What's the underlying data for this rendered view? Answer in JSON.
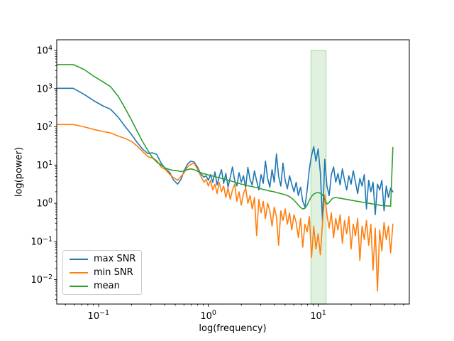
{
  "figure": {
    "xlabel": "log(frequency)",
    "ylabel": "log(power)",
    "background_color": "#ffffff",
    "spine_color": "#000000"
  },
  "chart_data": {
    "type": "line",
    "title": "",
    "xlabel": "log(frequency)",
    "ylabel": "log(power)",
    "x_scale": "log",
    "y_scale": "log",
    "xlim_log10": [
      -1.38,
      1.83
    ],
    "ylim_log10": [
      -2.64,
      4.28
    ],
    "x_major_ticks": [
      0.1,
      1,
      10
    ],
    "y_major_ticks": [
      10000,
      1000,
      100,
      10,
      1,
      0.1,
      0.01
    ],
    "grid": "off",
    "legend_position": "lower left",
    "highlight_band": {
      "x_start": 8.6,
      "x_end": 11.8,
      "y_top": 10000,
      "color": "#2ca02c",
      "fill_alpha": 0.15,
      "edge_alpha": 0.28
    },
    "log10_frequency": [
      -1.38,
      -1.31,
      -1.23,
      -1.13,
      -1.04,
      -0.96,
      -0.89,
      -0.82,
      -0.76,
      -0.7,
      -0.65,
      -0.6,
      -0.55,
      -0.51,
      -0.47,
      -0.43,
      -0.39,
      -0.35,
      -0.32,
      -0.28,
      -0.25,
      -0.22,
      -0.19,
      -0.16,
      -0.13,
      -0.1,
      -0.07,
      -0.04,
      -0.02,
      0.0,
      0.02,
      0.04,
      0.06,
      0.08,
      0.1,
      0.12,
      0.14,
      0.16,
      0.18,
      0.2,
      0.22,
      0.24,
      0.26,
      0.28,
      0.3,
      0.32,
      0.34,
      0.36,
      0.38,
      0.4,
      0.42,
      0.44,
      0.46,
      0.48,
      0.5,
      0.52,
      0.54,
      0.56,
      0.58,
      0.6,
      0.62,
      0.64,
      0.66,
      0.68,
      0.7,
      0.72,
      0.74,
      0.76,
      0.78,
      0.8,
      0.82,
      0.84,
      0.86,
      0.88,
      0.9,
      0.92,
      0.94,
      0.96,
      0.98,
      1.0,
      1.02,
      1.04,
      1.06,
      1.08,
      1.1,
      1.12,
      1.14,
      1.16,
      1.18,
      1.2,
      1.22,
      1.24,
      1.26,
      1.28,
      1.3,
      1.32,
      1.34,
      1.36,
      1.38,
      1.4,
      1.42,
      1.44,
      1.46,
      1.48,
      1.5,
      1.52,
      1.54,
      1.56,
      1.58,
      1.6,
      1.62,
      1.64,
      1.66,
      1.68
    ],
    "series": [
      {
        "name": "max SNR",
        "color": "#1f77b4",
        "log10_power": [
          3.01,
          3.01,
          3.01,
          2.85,
          2.68,
          2.55,
          2.46,
          2.25,
          2.02,
          1.8,
          1.6,
          1.42,
          1.3,
          1.32,
          1.28,
          1.05,
          0.9,
          0.8,
          0.62,
          0.5,
          0.62,
          0.85,
          1.02,
          1.1,
          1.08,
          0.95,
          0.78,
          0.68,
          0.72,
          0.6,
          0.75,
          0.55,
          0.82,
          0.48,
          0.7,
          0.88,
          0.52,
          0.78,
          0.42,
          0.68,
          0.95,
          0.6,
          0.45,
          0.8,
          0.55,
          0.72,
          0.4,
          0.94,
          0.62,
          0.48,
          0.85,
          0.58,
          0.35,
          0.75,
          0.52,
          1.1,
          0.65,
          0.42,
          0.88,
          0.55,
          1.29,
          0.7,
          0.45,
          1.05,
          0.6,
          0.38,
          0.72,
          0.5,
          0.3,
          0.55,
          0.2,
          0.42,
          0.05,
          -0.1,
          0.35,
          0.9,
          1.25,
          1.48,
          1.1,
          1.42,
          0.8,
          -0.49,
          1.15,
          0.45,
          0.2,
          0.75,
          0.95,
          0.55,
          0.78,
          0.48,
          0.9,
          0.6,
          0.35,
          0.72,
          0.5,
          0.85,
          0.55,
          0.25,
          0.65,
          0.45,
          0.75,
          -0.15,
          0.6,
          0.3,
          0.55,
          -0.3,
          0.5,
          0.35,
          0.6,
          -0.2,
          0.45,
          0.15,
          0.4,
          0.3
        ]
      },
      {
        "name": "min SNR",
        "color": "#ff7f0e",
        "log10_power": [
          2.06,
          2.06,
          2.06,
          2.0,
          1.93,
          1.88,
          1.84,
          1.76,
          1.7,
          1.62,
          1.5,
          1.36,
          1.22,
          1.18,
          1.12,
          0.95,
          0.88,
          0.75,
          0.68,
          0.6,
          0.7,
          0.8,
          0.95,
          1.02,
          1.05,
          0.9,
          0.72,
          0.55,
          0.62,
          0.45,
          0.6,
          0.35,
          0.5,
          0.25,
          0.55,
          0.3,
          0.45,
          0.15,
          0.4,
          0.1,
          0.35,
          0.5,
          0.05,
          0.3,
          -0.05,
          0.25,
          0.4,
          0.0,
          0.2,
          -0.15,
          0.15,
          -0.85,
          0.1,
          -0.25,
          0.05,
          -0.4,
          0.0,
          -0.2,
          -0.6,
          -0.1,
          -0.35,
          -1.1,
          -0.2,
          -0.45,
          -0.15,
          -0.55,
          -0.25,
          -0.7,
          -0.3,
          -0.5,
          -0.9,
          -0.4,
          -1.15,
          -0.55,
          -0.75,
          -0.35,
          -1.42,
          -0.6,
          -1.2,
          -0.8,
          -1.35,
          -0.5,
          0.22,
          -0.3,
          -0.65,
          -0.25,
          -0.9,
          -0.4,
          -0.7,
          -0.3,
          -1.05,
          -0.45,
          -0.8,
          -0.35,
          -1.2,
          -0.55,
          -0.85,
          -0.4,
          -1.5,
          -0.6,
          -0.95,
          -0.45,
          -1.1,
          -0.55,
          -1.75,
          -0.65,
          -2.3,
          -0.7,
          -1.25,
          -0.5,
          -0.95,
          -0.6,
          -1.3,
          -0.55
        ]
      },
      {
        "name": "mean",
        "color": "#2ca02c",
        "log10_power": [
          3.63,
          3.63,
          3.63,
          3.5,
          3.32,
          3.18,
          3.05,
          2.8,
          2.5,
          2.18,
          1.9,
          1.62,
          1.38,
          1.2,
          1.08,
          1.0,
          0.92,
          0.88,
          0.86,
          0.85,
          0.83,
          0.85,
          0.88,
          0.9,
          0.88,
          0.84,
          0.8,
          0.77,
          0.76,
          0.74,
          0.73,
          0.71,
          0.7,
          0.68,
          0.67,
          0.65,
          0.64,
          0.62,
          0.6,
          0.59,
          0.57,
          0.55,
          0.53,
          0.52,
          0.5,
          0.49,
          0.47,
          0.46,
          0.45,
          0.44,
          0.42,
          0.41,
          0.4,
          0.38,
          0.36,
          0.35,
          0.33,
          0.32,
          0.31,
          0.3,
          0.28,
          0.27,
          0.25,
          0.24,
          0.22,
          0.2,
          0.17,
          0.13,
          0.08,
          0.02,
          -0.05,
          -0.11,
          -0.15,
          -0.13,
          -0.05,
          0.08,
          0.18,
          0.24,
          0.27,
          0.28,
          0.26,
          0.22,
          0.1,
          -0.02,
          0.02,
          0.1,
          0.14,
          0.15,
          0.14,
          0.13,
          0.12,
          0.11,
          0.1,
          0.09,
          0.08,
          0.07,
          0.06,
          0.05,
          0.04,
          0.03,
          0.02,
          0.01,
          0.0,
          -0.01,
          -0.02,
          -0.03,
          -0.04,
          -0.05,
          -0.06,
          -0.06,
          -0.07,
          -0.07,
          -0.08,
          1.46
        ]
      }
    ]
  }
}
